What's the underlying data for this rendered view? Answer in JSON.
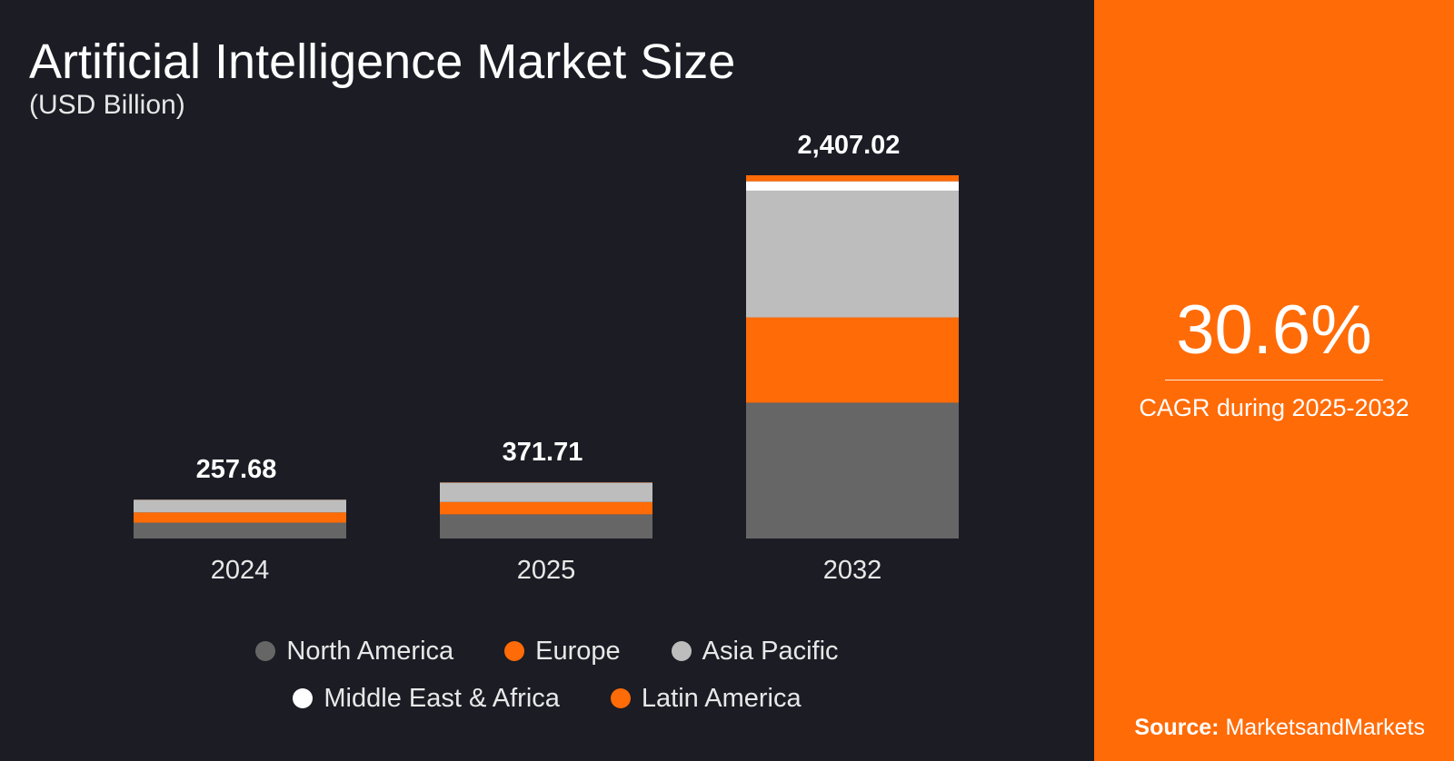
{
  "chart_data": {
    "type": "bar",
    "stacked": true,
    "title": "Artificial Intelligence Market Size",
    "subtitle": "(USD Billion)",
    "categories": [
      "2024",
      "2025",
      "2032"
    ],
    "totals": [
      257.68,
      371.71,
      2407.02
    ],
    "total_labels": [
      "257.68",
      "371.71",
      "2,407.02"
    ],
    "series": [
      {
        "name": "North America",
        "color": "#666666",
        "values": [
          105,
          160,
          900
        ]
      },
      {
        "name": "Europe",
        "color": "#ff6b07",
        "values": [
          68,
          82,
          565
        ]
      },
      {
        "name": "Asia Pacific",
        "color": "#bdbdbd",
        "values": [
          84,
          128,
          840
        ]
      },
      {
        "name": "Middle East & Africa",
        "color": "#ffffff",
        "values": [
          0,
          0,
          62
        ]
      },
      {
        "name": "Latin America",
        "color": "#ff6b07",
        "values": [
          0.68,
          1.71,
          40.02
        ]
      }
    ],
    "ylim": [
      0,
      2407.02
    ],
    "grid": false,
    "legend_position": "bottom"
  },
  "cagr": {
    "value": "30.6%",
    "label": "CAGR during 2025-2032"
  },
  "source": {
    "label": "Source:",
    "value": "MarketsandMarkets"
  },
  "colors": {
    "background": "#1b1c24",
    "panel": "#ff6b07",
    "accent": "#ff6b07"
  }
}
